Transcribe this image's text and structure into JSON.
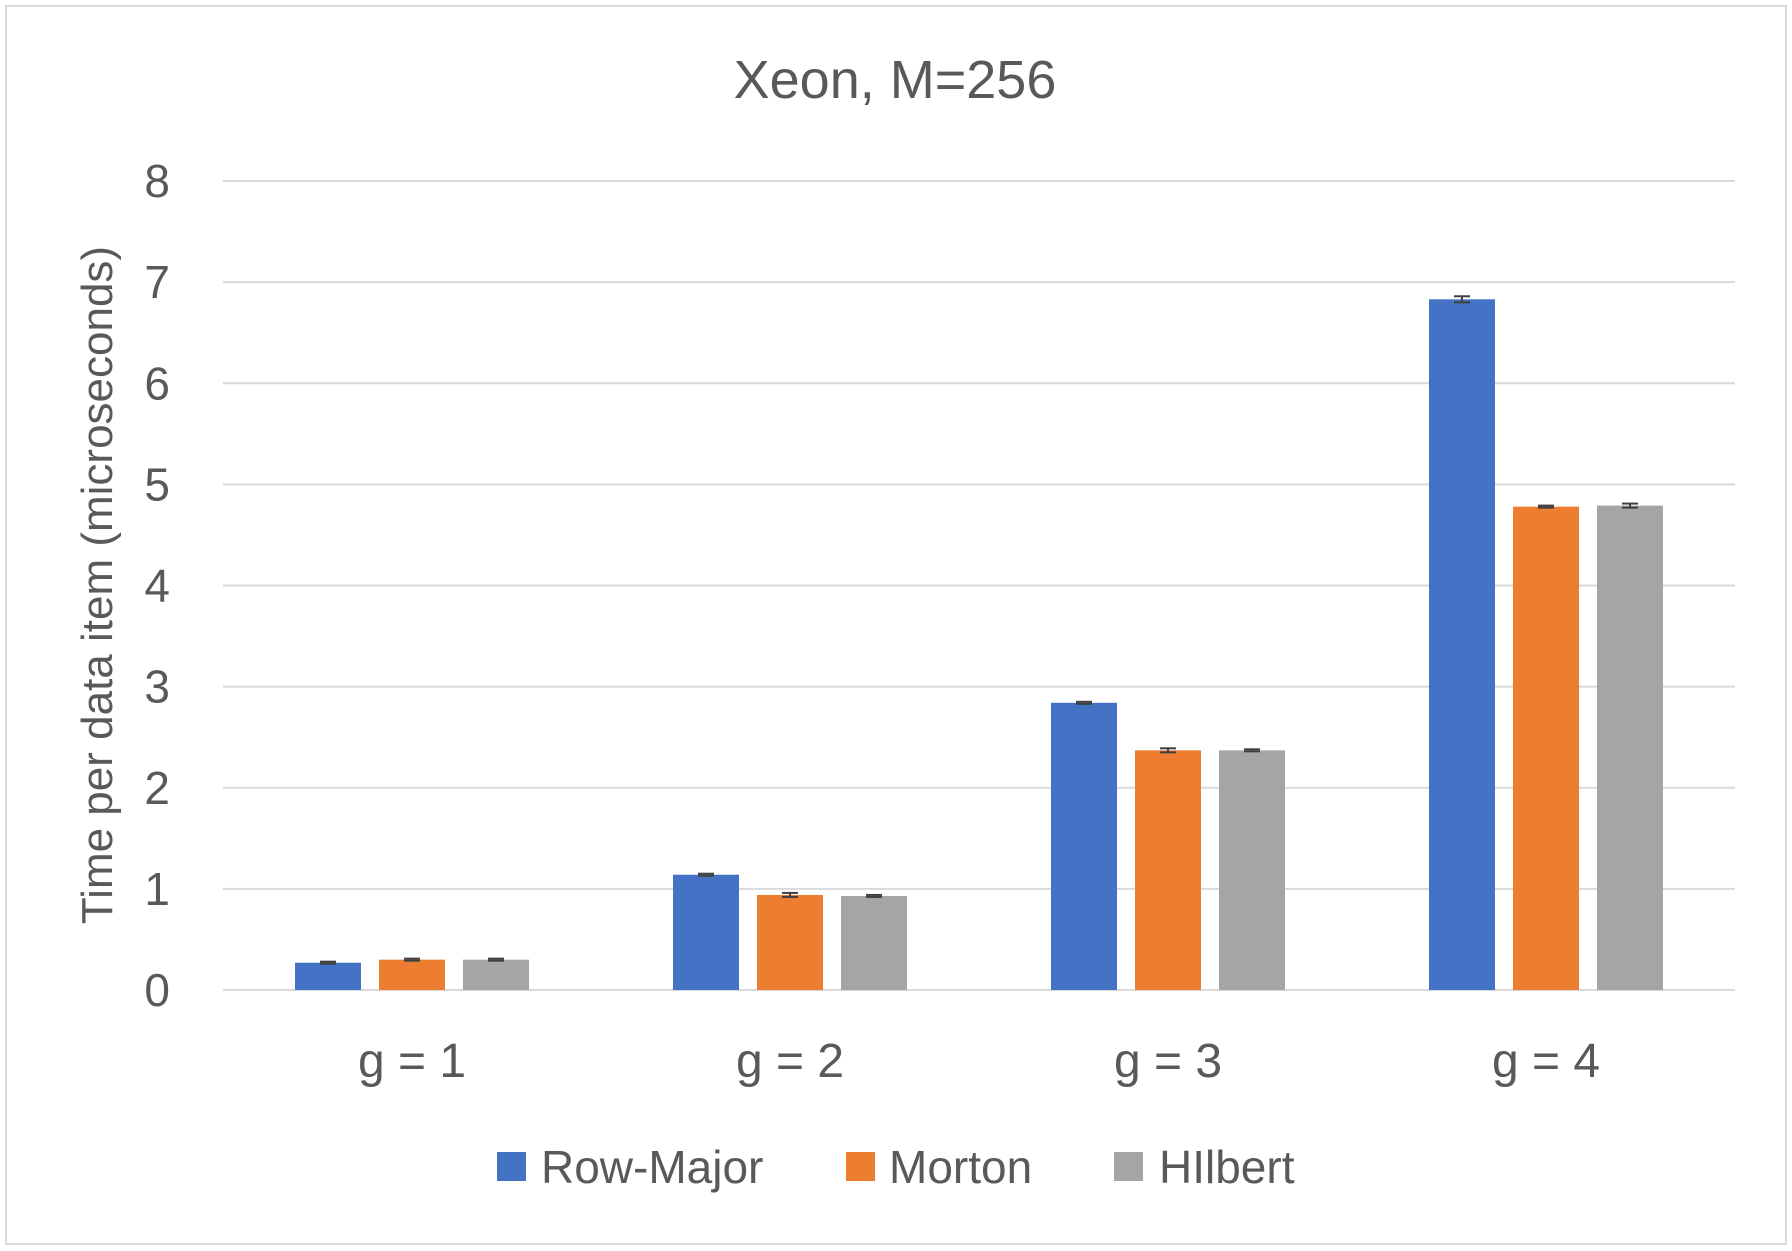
{
  "chart_data": {
    "type": "bar",
    "title": "Xeon, M=256",
    "xlabel": "",
    "ylabel": "Time per data item (microseconds)",
    "categories": [
      "g = 1",
      "g = 2",
      "g = 3",
      "g = 4"
    ],
    "series": [
      {
        "name": "Row-Major",
        "color": "#4472C4",
        "values": [
          0.27,
          1.14,
          2.84,
          6.83
        ],
        "errors": [
          0.01,
          0.01,
          0.01,
          0.03
        ]
      },
      {
        "name": "Morton",
        "color": "#ED7D31",
        "values": [
          0.3,
          0.94,
          2.37,
          4.78
        ],
        "errors": [
          0.01,
          0.02,
          0.02,
          0.01
        ]
      },
      {
        "name": "HIlbert",
        "color": "#A5A5A5",
        "values": [
          0.3,
          0.93,
          2.37,
          4.79
        ],
        "errors": [
          0.01,
          0.01,
          0.01,
          0.02
        ]
      }
    ],
    "ylim": [
      0,
      8
    ],
    "yticks": [
      "0",
      "1",
      "2",
      "3",
      "4",
      "5",
      "6",
      "7",
      "8"
    ],
    "grid": true,
    "legend": "bottom-center",
    "colors": {
      "grid": "#D9D9D9",
      "text": "#595959",
      "error_bar": "#404040",
      "frame": "#D9D9D9"
    }
  }
}
